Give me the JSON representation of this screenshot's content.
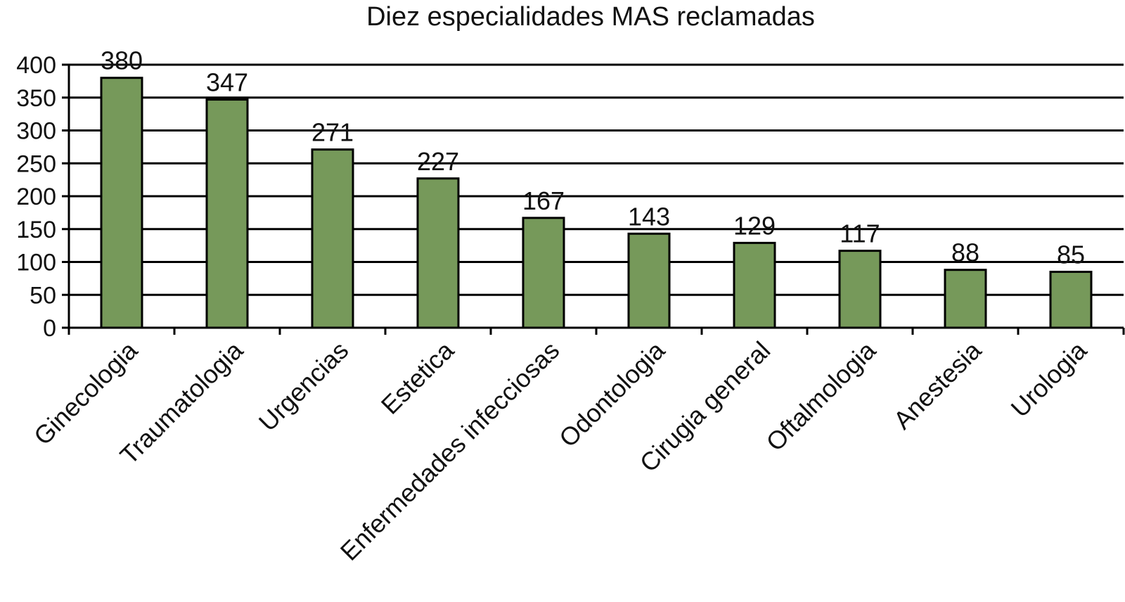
{
  "chart_data": {
    "type": "bar",
    "title": "Diez especialidades MAS reclamadas",
    "xlabel": "",
    "ylabel": "",
    "ylim": [
      0,
      400
    ],
    "yticks": [
      0,
      50,
      100,
      150,
      200,
      250,
      300,
      350,
      400
    ],
    "grid": true,
    "categories": [
      "Ginecologia",
      "Traumatologia",
      "Urgencias",
      "Estetica",
      "Enfermedades infecciosas",
      "Odontologia",
      "Cirugia general",
      "Oftalmologia",
      "Anestesia",
      "Urologia"
    ],
    "values": [
      380,
      347,
      271,
      227,
      167,
      143,
      129,
      117,
      88,
      85
    ],
    "bar_color": "#76995a"
  }
}
